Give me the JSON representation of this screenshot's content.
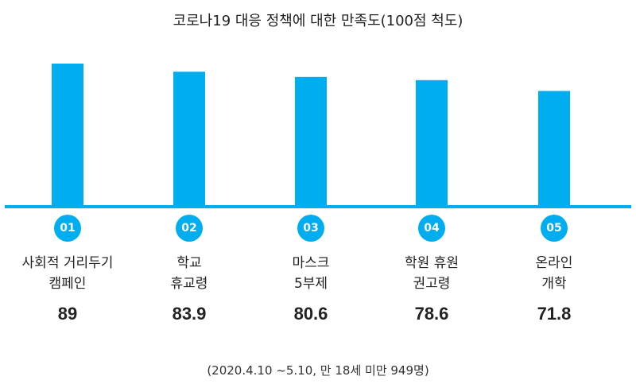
{
  "chart_data": {
    "type": "bar",
    "title": "코로나19 대응 정책에 대한 만족도(100점 척도)",
    "categories": [
      {
        "number": "01",
        "label": "사회적 거리두기\n캠페인"
      },
      {
        "number": "02",
        "label": "학교\n휴교령"
      },
      {
        "number": "03",
        "label": "마스크\n5부제"
      },
      {
        "number": "04",
        "label": "학원 휴원\n권고령"
      },
      {
        "number": "05",
        "label": "온라인\n개학"
      }
    ],
    "values": [
      89,
      83.9,
      80.6,
      78.6,
      71.8
    ],
    "value_labels": [
      "89",
      "83.9",
      "80.6",
      "78.6",
      "71.8"
    ],
    "note": "(2020.4.10 ~5.10, 만 18세 미만 949명)",
    "colors": {
      "bar": "#00AEEF",
      "baseline": "#00AEEF",
      "badge": "#00AEEF"
    }
  }
}
